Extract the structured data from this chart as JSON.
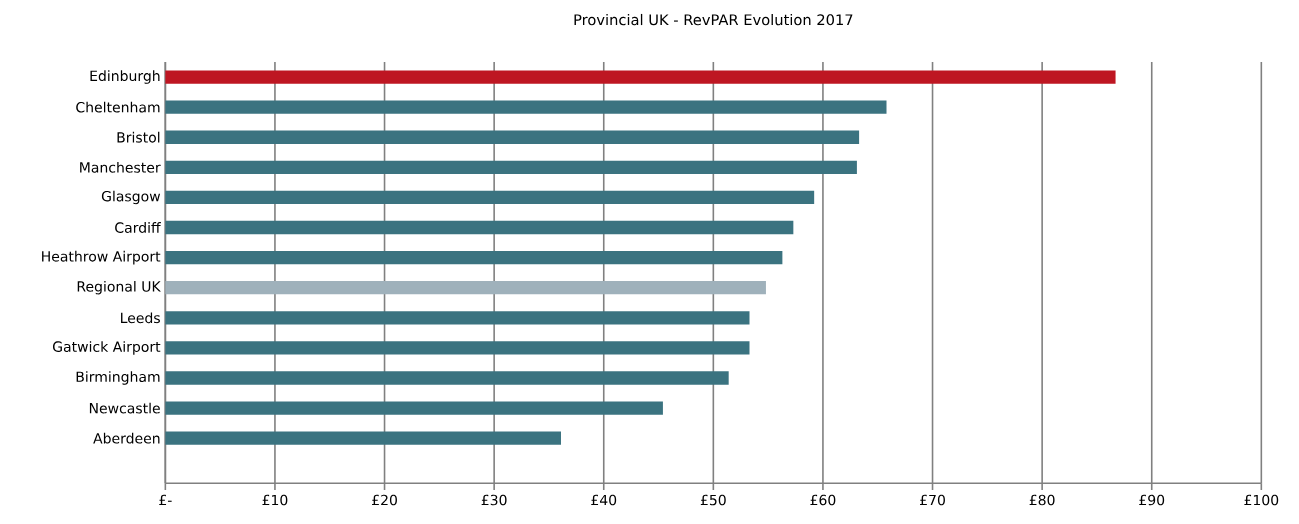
{
  "chart_data": {
    "type": "bar",
    "orientation": "horizontal",
    "title": "Provincial UK - RevPAR Evolution 2017",
    "categories": [
      "Edinburgh",
      "Cheltenham",
      "Bristol",
      "Manchester",
      "Glasgow",
      "Cardiff",
      "Heathrow Airport",
      "Regional UK",
      "Leeds",
      "Gatwick Airport",
      "Birmingham",
      "Newcastle",
      "Aberdeen"
    ],
    "values": [
      86.7,
      65.8,
      63.3,
      63.1,
      59.2,
      57.3,
      56.3,
      54.8,
      53.3,
      53.3,
      51.4,
      45.4,
      36.1
    ],
    "colors": [
      "#be1622",
      "#3b7380",
      "#3b7380",
      "#3b7380",
      "#3b7380",
      "#3b7380",
      "#3b7380",
      "#9fb1bb",
      "#3b7380",
      "#3b7380",
      "#3b7380",
      "#3b7380",
      "#3b7380"
    ],
    "xlim": [
      0,
      100
    ],
    "xticks": [
      {
        "value": 0,
        "label": "£-"
      },
      {
        "value": 10,
        "label": "£10"
      },
      {
        "value": 20,
        "label": "£20"
      },
      {
        "value": 30,
        "label": "£30"
      },
      {
        "value": 40,
        "label": "£40"
      },
      {
        "value": 50,
        "label": "£50"
      },
      {
        "value": 60,
        "label": "£60"
      },
      {
        "value": 70,
        "label": "£70"
      },
      {
        "value": 80,
        "label": "£80"
      },
      {
        "value": 90,
        "label": "£90"
      },
      {
        "value": 100,
        "label": "£100"
      }
    ],
    "grid": "x"
  }
}
